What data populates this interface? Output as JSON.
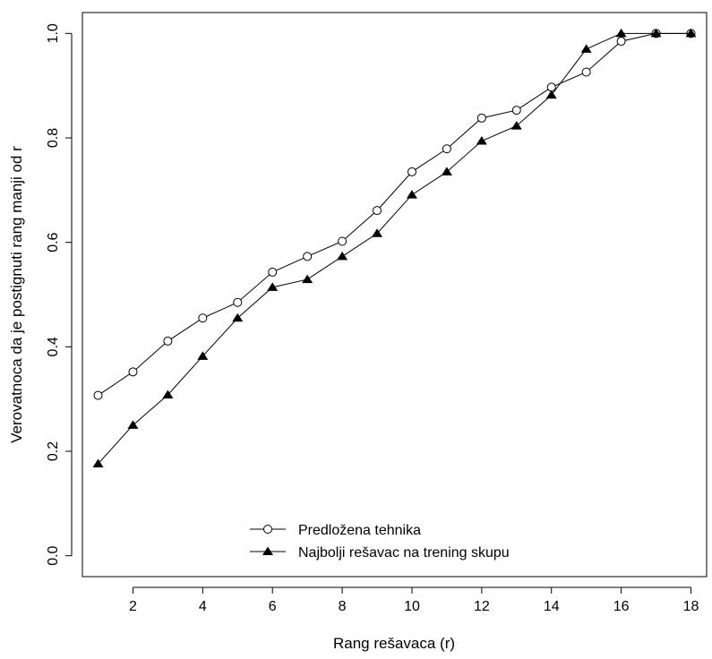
{
  "chart_data": {
    "type": "line",
    "xlabel": "Rang rešavaca (r)",
    "ylabel": "Verovatnoca da je postignuti rang manji od r",
    "xlim": [
      0.55,
      18.45
    ],
    "ylim": [
      -0.04,
      1.04
    ],
    "x_ticks": [
      2,
      4,
      6,
      8,
      10,
      12,
      14,
      16,
      18
    ],
    "y_ticks": [
      0.0,
      0.2,
      0.4,
      0.6,
      0.8,
      1.0
    ],
    "x_tick_labels": [
      "2",
      "4",
      "6",
      "8",
      "10",
      "12",
      "14",
      "16",
      "18"
    ],
    "y_tick_labels": [
      "0.0",
      "0.2",
      "0.4",
      "0.6",
      "0.8",
      "1.0"
    ],
    "x": [
      1,
      2,
      3,
      4,
      5,
      6,
      7,
      8,
      9,
      10,
      11,
      12,
      13,
      14,
      15,
      16,
      17,
      18
    ],
    "series": [
      {
        "name": "Predložena tehnika",
        "marker": "open-circle",
        "values": [
          0.307,
          0.352,
          0.411,
          0.455,
          0.485,
          0.543,
          0.573,
          0.602,
          0.661,
          0.735,
          0.779,
          0.838,
          0.853,
          0.897,
          0.926,
          0.985,
          1.0,
          1.0
        ]
      },
      {
        "name": "Najbolji rešavac na trening skupu",
        "marker": "filled-triangle",
        "values": [
          0.176,
          0.25,
          0.308,
          0.382,
          0.455,
          0.514,
          0.529,
          0.573,
          0.617,
          0.691,
          0.735,
          0.794,
          0.823,
          0.882,
          0.97,
          1.0,
          1.0,
          1.0
        ]
      }
    ],
    "legend": {
      "position": "bottom-center",
      "entries": [
        "Predložena tehnika",
        "Najbolji rešavac na trening skupu"
      ]
    },
    "grid": false,
    "colors": {
      "line": "#000000",
      "background": "#ffffff"
    }
  }
}
